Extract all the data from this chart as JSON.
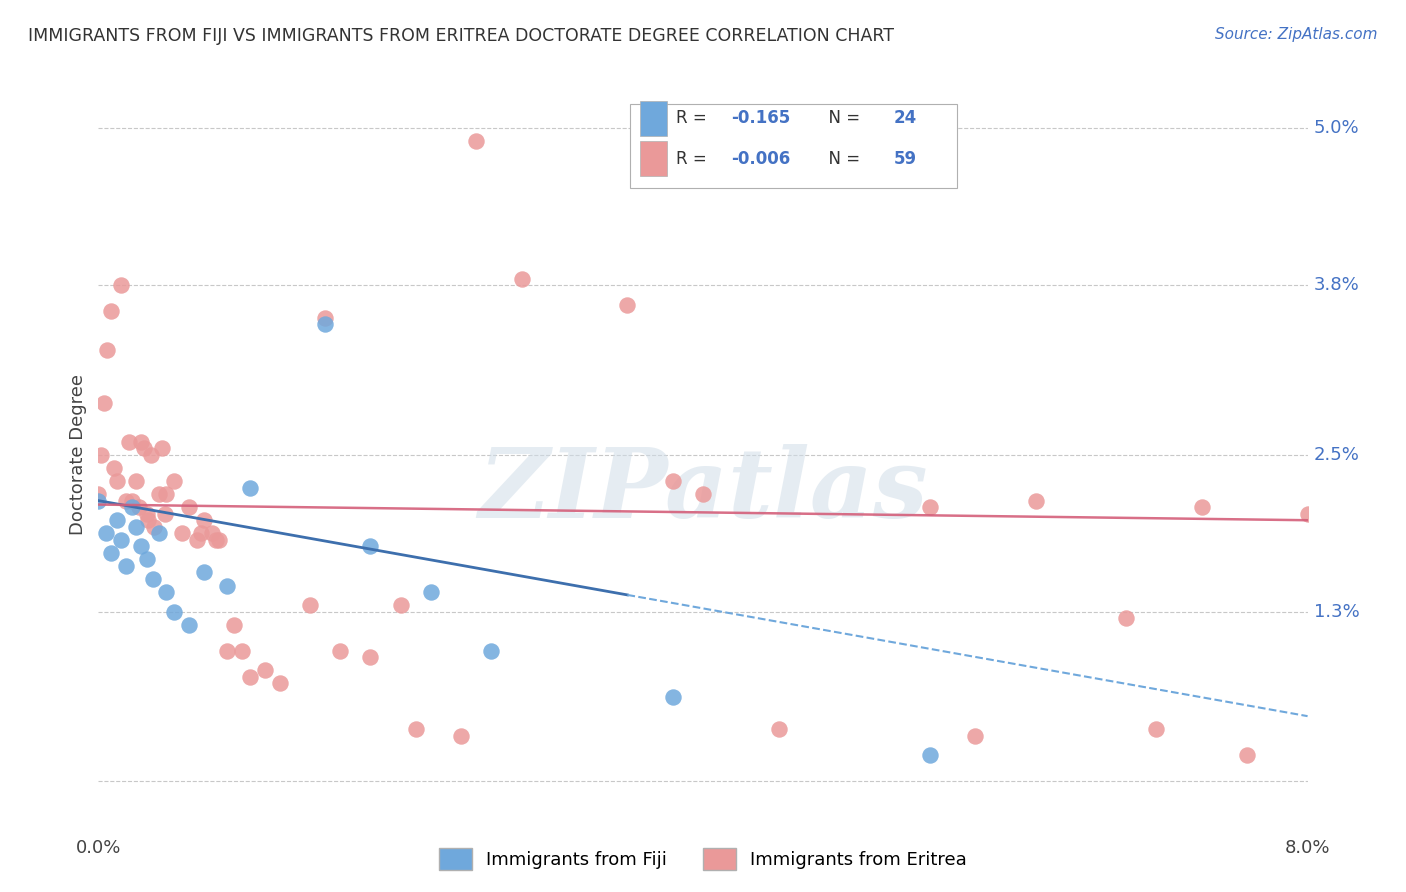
{
  "title": "IMMIGRANTS FROM FIJI VS IMMIGRANTS FROM ERITREA DOCTORATE DEGREE CORRELATION CHART",
  "source": "Source: ZipAtlas.com",
  "ylabel": "Doctorate Degree",
  "xmin": 0.0,
  "xmax": 8.0,
  "ymin": -0.3,
  "ymax": 5.3,
  "fiji_color": "#6fa8dc",
  "fiji_line_color": "#3d6fad",
  "eritrea_color": "#ea9999",
  "eritrea_line_color": "#d45f7a",
  "fiji_R": -0.165,
  "fiji_N": 24,
  "eritrea_R": -0.006,
  "eritrea_N": 59,
  "fiji_scatter_x": [
    0.0,
    0.05,
    0.08,
    0.12,
    0.15,
    0.18,
    0.22,
    0.25,
    0.28,
    0.32,
    0.36,
    0.4,
    0.45,
    0.5,
    0.6,
    0.7,
    0.85,
    1.0,
    1.5,
    1.8,
    2.2,
    2.6,
    3.8,
    5.5
  ],
  "fiji_scatter_y": [
    2.15,
    1.9,
    1.75,
    2.0,
    1.85,
    1.65,
    2.1,
    1.95,
    1.8,
    1.7,
    1.55,
    1.9,
    1.45,
    1.3,
    1.2,
    1.6,
    1.5,
    2.25,
    3.5,
    1.8,
    1.45,
    1.0,
    0.65,
    0.2
  ],
  "eritrea_scatter_x": [
    0.0,
    0.02,
    0.04,
    0.06,
    0.08,
    0.1,
    0.12,
    0.15,
    0.18,
    0.2,
    0.22,
    0.25,
    0.27,
    0.28,
    0.3,
    0.32,
    0.33,
    0.35,
    0.37,
    0.4,
    0.42,
    0.44,
    0.45,
    0.5,
    0.55,
    0.6,
    0.65,
    0.68,
    0.7,
    0.75,
    0.78,
    0.8,
    0.85,
    0.9,
    0.95,
    1.0,
    1.1,
    1.2,
    1.4,
    1.5,
    1.6,
    1.8,
    2.0,
    2.1,
    2.4,
    2.5,
    2.8,
    3.5,
    3.8,
    4.0,
    4.5,
    5.5,
    5.8,
    6.2,
    6.8,
    7.0,
    7.3,
    7.6,
    8.0
  ],
  "eritrea_scatter_y": [
    2.2,
    2.5,
    2.9,
    3.3,
    3.6,
    2.4,
    2.3,
    3.8,
    2.15,
    2.6,
    2.15,
    2.3,
    2.1,
    2.6,
    2.55,
    2.05,
    2.0,
    2.5,
    1.95,
    2.2,
    2.55,
    2.05,
    2.2,
    2.3,
    1.9,
    2.1,
    1.85,
    1.9,
    2.0,
    1.9,
    1.85,
    1.85,
    1.0,
    1.2,
    1.0,
    0.8,
    0.85,
    0.75,
    1.35,
    3.55,
    1.0,
    0.95,
    1.35,
    0.4,
    0.35,
    4.9,
    3.85,
    3.65,
    2.3,
    2.2,
    0.4,
    2.1,
    0.35,
    2.15,
    1.25,
    0.4,
    2.1,
    0.2,
    2.05
  ],
  "watermark_text": "ZIPatlas",
  "legend_label_fiji": "Immigrants from Fiji",
  "legend_label_eritrea": "Immigrants from Eritrea",
  "ytick_vals": [
    0.0,
    1.3,
    2.5,
    3.8,
    5.0
  ],
  "ytick_labels": [
    "",
    "1.3%",
    "2.5%",
    "3.8%",
    "5.0%"
  ],
  "xtick_vals": [
    0.0,
    8.0
  ],
  "xtick_labels": [
    "0.0%",
    "8.0%"
  ],
  "fiji_trend_x0": 0.0,
  "fiji_trend_x_solid_end": 3.5,
  "fiji_trend_x1": 8.0,
  "fiji_trend_y0": 2.15,
  "fiji_trend_y1": 0.5,
  "eritrea_trend_y0": 2.12,
  "eritrea_trend_y1": 2.0,
  "background_color": "#ffffff",
  "grid_color": "#c8c8c8"
}
